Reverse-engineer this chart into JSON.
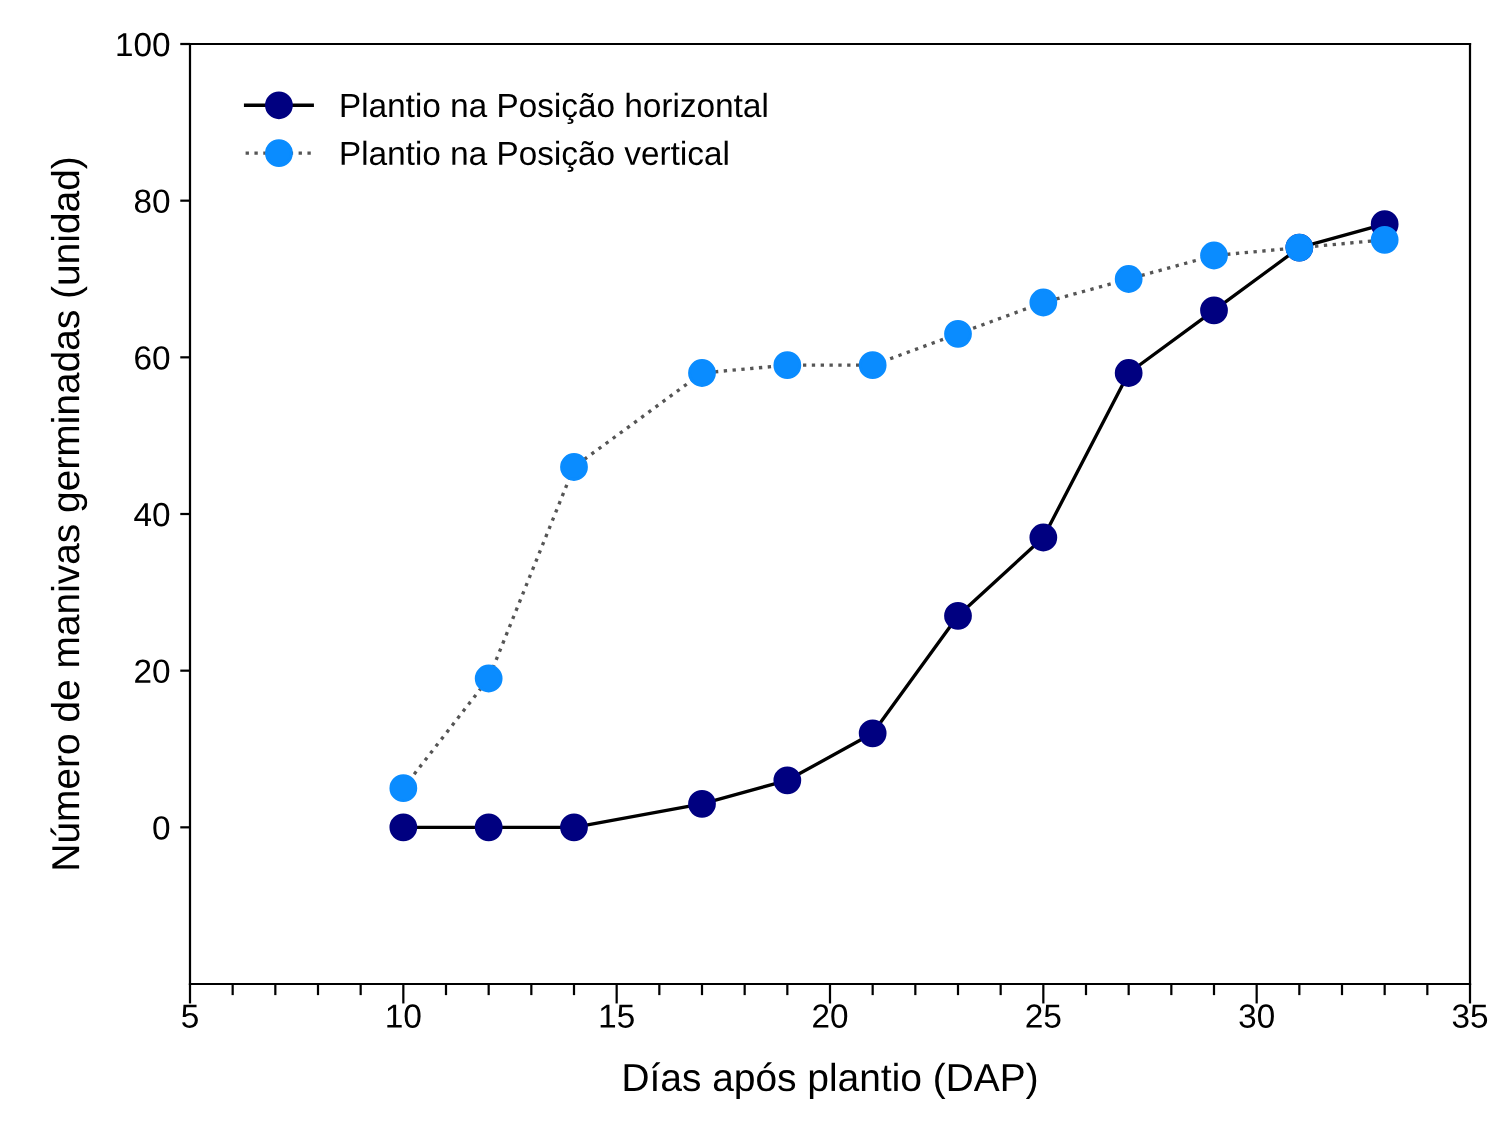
{
  "chart_data": {
    "type": "line",
    "xlabel": "Días após plantio (DAP)",
    "ylabel": "Número de manivas germinadas (unidad)",
    "x": [
      10,
      12,
      14,
      17,
      19,
      21,
      23,
      25,
      27,
      29,
      31,
      33
    ],
    "series": [
      {
        "name": "Plantio na Posição horizontal",
        "color": "#000080",
        "line_style": "solid",
        "values": [
          0,
          0,
          0,
          3,
          6,
          12,
          27,
          37,
          58,
          66,
          74,
          77
        ]
      },
      {
        "name": "Plantio na Posição vertical",
        "color": "#0a8cff",
        "line_style": "dotted",
        "values": [
          5,
          19,
          46,
          58,
          59,
          59,
          63,
          67,
          70,
          73,
          74,
          75
        ]
      }
    ],
    "xlim": [
      5,
      35
    ],
    "xticks": [
      5,
      {
        "value": 6,
        "label": null
      },
      {
        "value": 7,
        "label": null
      },
      {
        "value": 8,
        "label": null
      },
      {
        "value": 9,
        "label": null
      },
      10,
      {
        "value": 11,
        "label": null
      },
      {
        "value": 12,
        "label": null
      },
      {
        "value": 13,
        "label": null
      },
      {
        "value": 14,
        "label": null
      },
      15,
      {
        "value": 16,
        "label": null
      },
      {
        "value": 17,
        "label": null
      },
      {
        "value": 18,
        "label": null
      },
      {
        "value": 19,
        "label": null
      },
      20,
      {
        "value": 21,
        "label": null
      },
      {
        "value": 22,
        "label": null
      },
      {
        "value": 23,
        "label": null
      },
      {
        "value": 24,
        "label": null
      },
      25,
      {
        "value": 26,
        "label": null
      },
      {
        "value": 27,
        "label": null
      },
      {
        "value": 28,
        "label": null
      },
      {
        "value": 29,
        "label": null
      },
      30,
      {
        "value": 31,
        "label": null
      },
      {
        "value": 32,
        "label": null
      },
      {
        "value": 33,
        "label": null
      },
      {
        "value": 34,
        "label": null
      },
      35
    ],
    "ylim": [
      -20,
      100
    ],
    "yticks": [
      0,
      20,
      40,
      60,
      80,
      100
    ],
    "marker": "circle",
    "grid": false,
    "legend": "top left"
  }
}
